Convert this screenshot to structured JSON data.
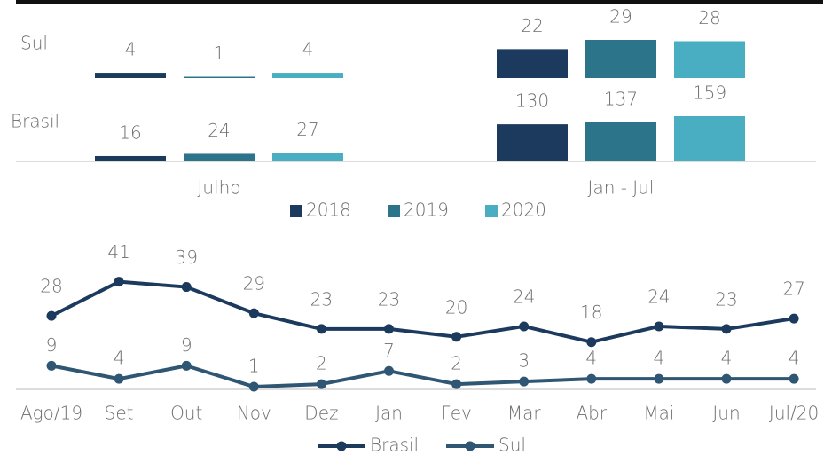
{
  "chart_data": [
    {
      "type": "bar",
      "rows": [
        "Sul",
        "Brasil"
      ],
      "categories": [
        "Julho",
        "Jan - Jul"
      ],
      "series": [
        {
          "name": "2018",
          "color": "#1b3a5e",
          "values": [
            [
              4,
              22
            ],
            [
              16,
              130
            ]
          ]
        },
        {
          "name": "2019",
          "color": "#2b7489",
          "values": [
            [
              1,
              29
            ],
            [
              24,
              137
            ]
          ]
        },
        {
          "name": "2020",
          "color": "#4aaec2",
          "values": [
            [
              4,
              28
            ],
            [
              27,
              159
            ]
          ]
        }
      ]
    },
    {
      "type": "line",
      "categories": [
        "Ago/19",
        "Set",
        "Out",
        "Nov",
        "Dez",
        "Jan",
        "Fev",
        "Mar",
        "Abr",
        "Mai",
        "Jun",
        "Jul/20"
      ],
      "series": [
        {
          "name": "Brasil",
          "color": "#1b3a5e",
          "values": [
            28,
            41,
            39,
            29,
            23,
            23,
            20,
            24,
            18,
            24,
            23,
            27
          ]
        },
        {
          "name": "Sul",
          "color": "#2f5673",
          "values": [
            9,
            4,
            9,
            1,
            2,
            7,
            2,
            3,
            4,
            4,
            4,
            4
          ]
        }
      ]
    }
  ]
}
